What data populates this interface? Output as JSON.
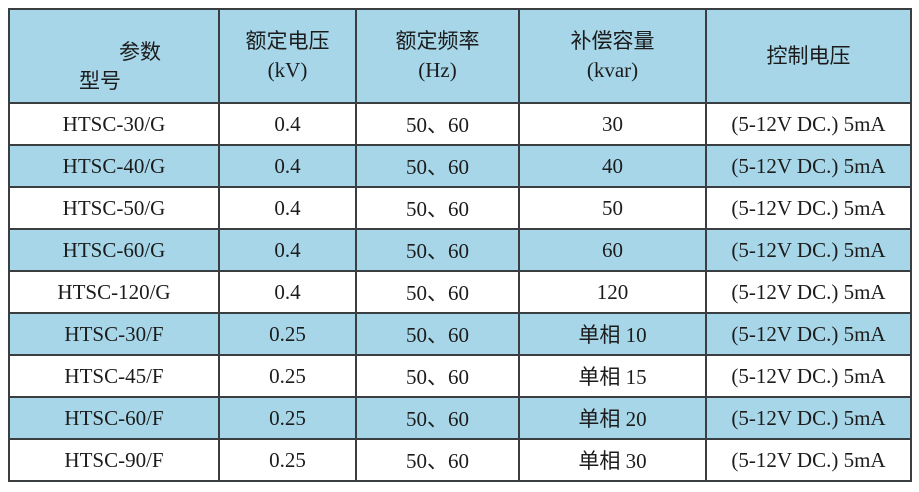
{
  "table": {
    "corner": {
      "top_label": "参数",
      "bottom_label": "型号"
    },
    "columns": [
      {
        "title": "额定电压",
        "unit": "(kV)"
      },
      {
        "title": "额定频率",
        "unit": "(Hz)"
      },
      {
        "title": "补偿容量",
        "unit": "(kvar)"
      },
      {
        "title": "控制电压",
        "unit": ""
      }
    ],
    "rows": [
      {
        "model": "HTSC-30/G",
        "rated_voltage": "0.4",
        "rated_frequency": "50、60",
        "capacity": "30",
        "control_voltage": "(5-12V DC.) 5mA",
        "highlight": false
      },
      {
        "model": "HTSC-40/G",
        "rated_voltage": "0.4",
        "rated_frequency": "50、60",
        "capacity": "40",
        "control_voltage": "(5-12V DC.) 5mA",
        "highlight": true
      },
      {
        "model": "HTSC-50/G",
        "rated_voltage": "0.4",
        "rated_frequency": "50、60",
        "capacity": "50",
        "control_voltage": "(5-12V DC.) 5mA",
        "highlight": false
      },
      {
        "model": "HTSC-60/G",
        "rated_voltage": "0.4",
        "rated_frequency": "50、60",
        "capacity": "60",
        "control_voltage": "(5-12V DC.) 5mA",
        "highlight": true
      },
      {
        "model": "HTSC-120/G",
        "rated_voltage": "0.4",
        "rated_frequency": "50、60",
        "capacity": "120",
        "control_voltage": "(5-12V DC.) 5mA",
        "highlight": false
      },
      {
        "model": "HTSC-30/F",
        "rated_voltage": "0.25",
        "rated_frequency": "50、60",
        "capacity": "单相 10",
        "control_voltage": "(5-12V DC.) 5mA",
        "highlight": true
      },
      {
        "model": "HTSC-45/F",
        "rated_voltage": "0.25",
        "rated_frequency": "50、60",
        "capacity": "单相 15",
        "control_voltage": "(5-12V DC.) 5mA",
        "highlight": false
      },
      {
        "model": "HTSC-60/F",
        "rated_voltage": "0.25",
        "rated_frequency": "50、60",
        "capacity": "单相 20",
        "control_voltage": "(5-12V DC.) 5mA",
        "highlight": true
      },
      {
        "model": "HTSC-90/F",
        "rated_voltage": "0.25",
        "rated_frequency": "50、60",
        "capacity": "单相 30",
        "control_voltage": "(5-12V DC.) 5mA",
        "highlight": false
      }
    ]
  },
  "colors": {
    "highlight_blue": "#a6d6e8",
    "border": "#3a3e40",
    "text": "#1c1c1c",
    "background": "#ffffff"
  }
}
